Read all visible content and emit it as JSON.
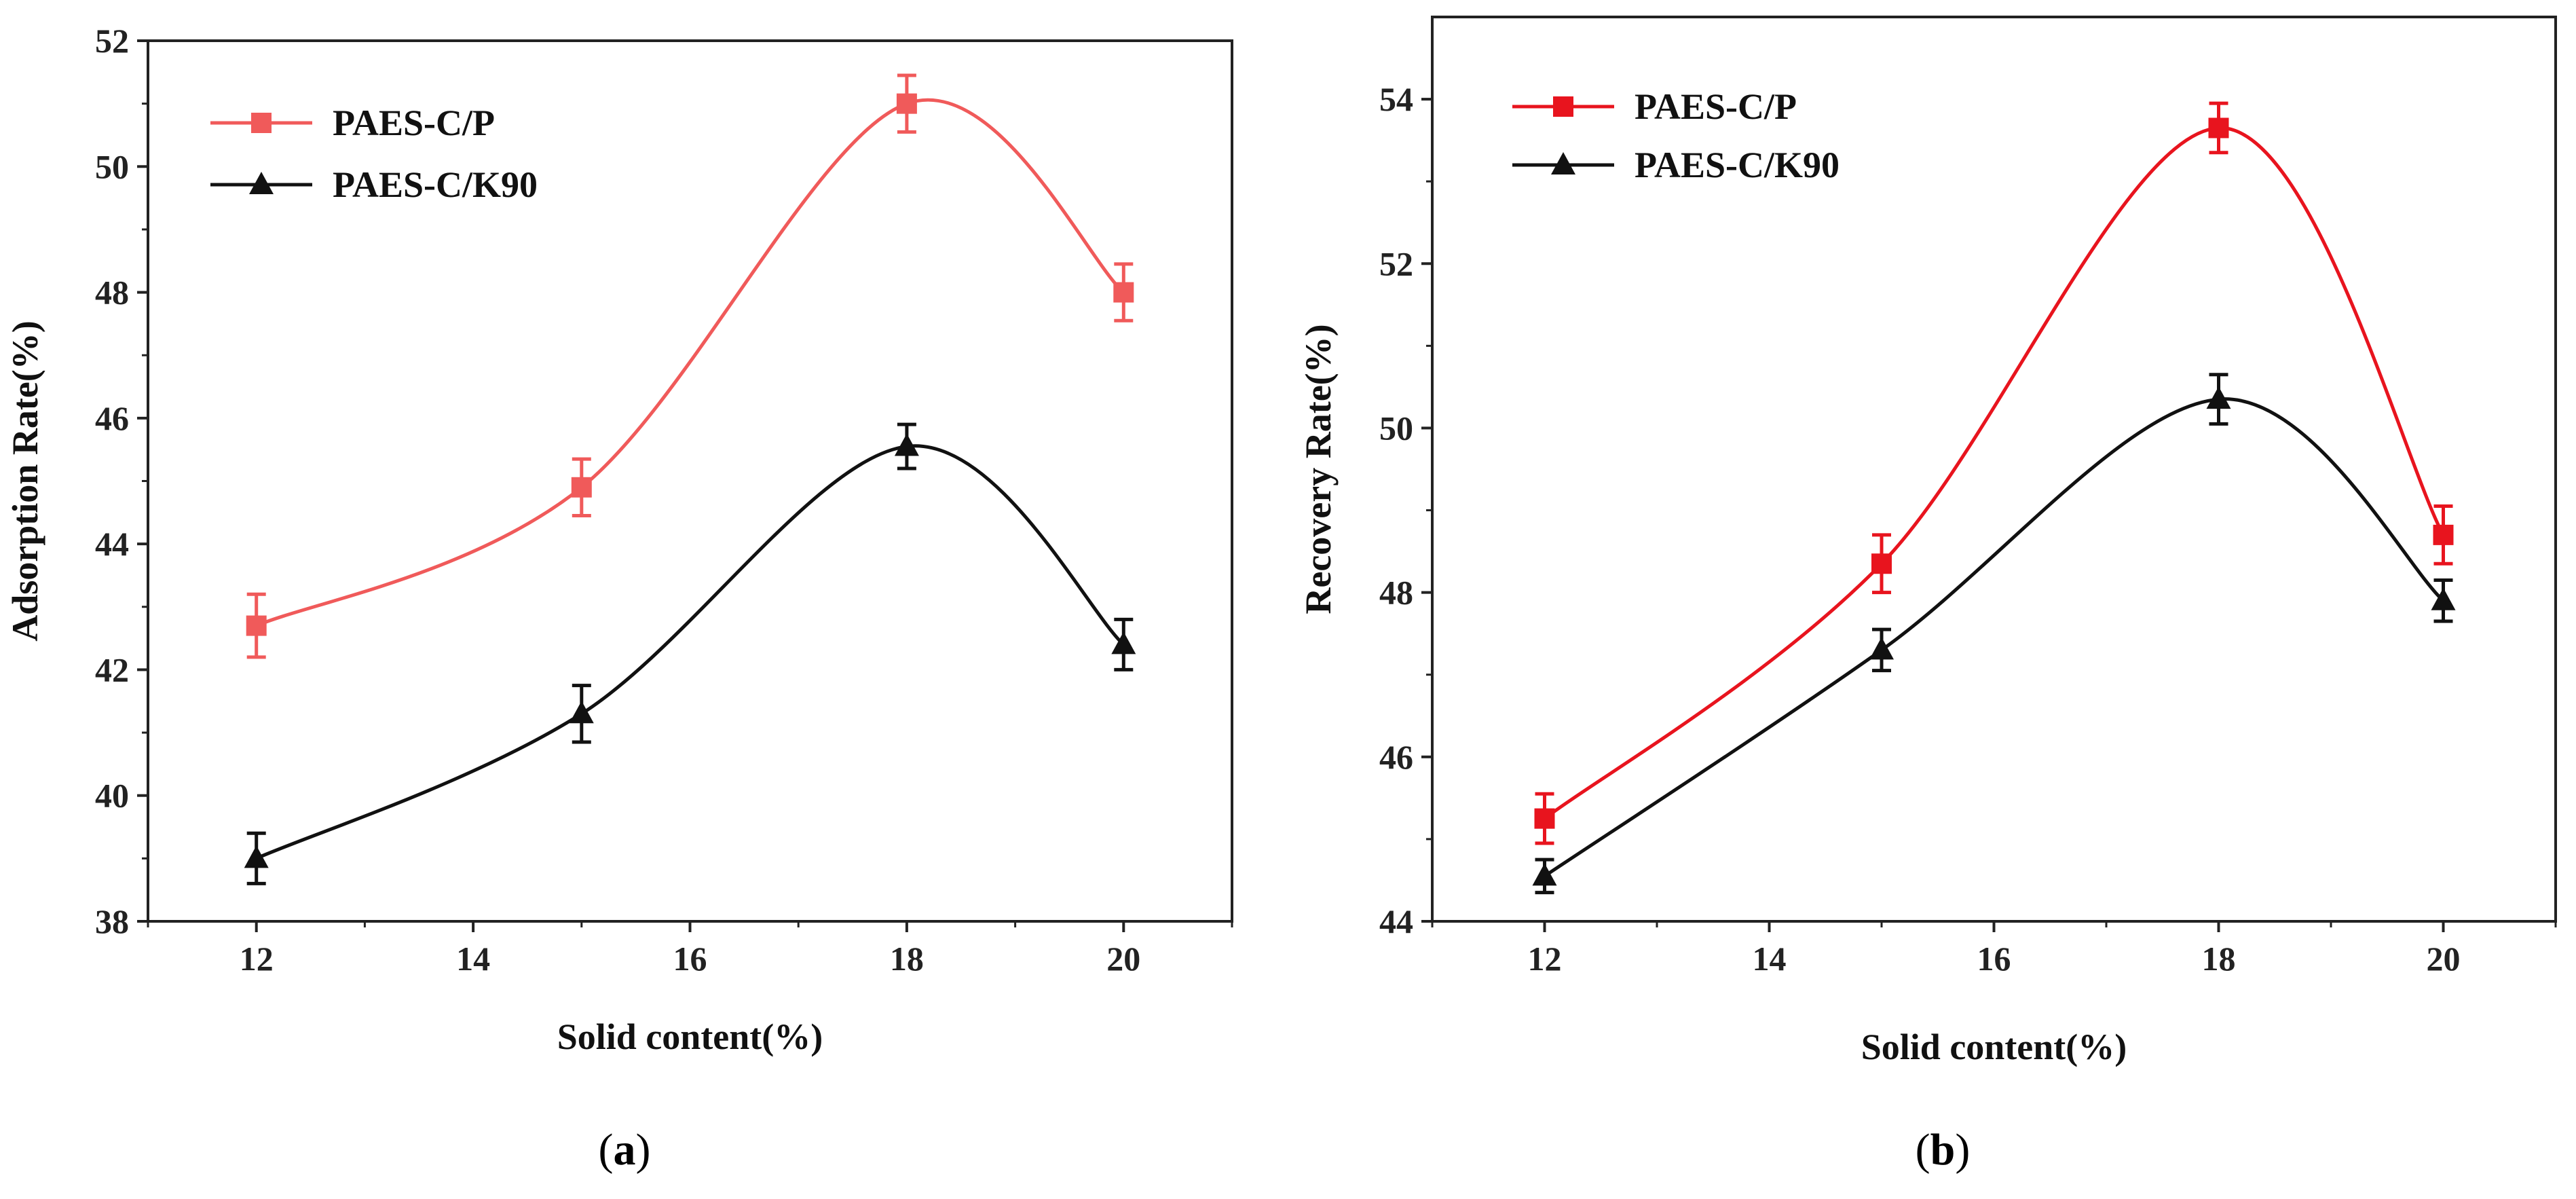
{
  "chart_data": [
    {
      "type": "line",
      "panel_label": "a",
      "panel_prefix": "(",
      "panel_suffix": ")",
      "xlabel": "Solid content(%)",
      "ylabel": "Adsorption Rate(%)",
      "xlim": [
        11,
        21
      ],
      "ylim": [
        38,
        52
      ],
      "xticks": [
        "12",
        "14",
        "16",
        "18",
        "20"
      ],
      "yticks": [
        "38",
        "40",
        "42",
        "44",
        "46",
        "48",
        "50",
        "52"
      ],
      "legend_position": "top-left",
      "series": [
        {
          "name": "PAES-C/P",
          "color": "#f05a5a",
          "marker": "square",
          "x": [
            12,
            15,
            18,
            20
          ],
          "values": [
            42.7,
            44.9,
            51.0,
            48.0
          ],
          "errors": [
            0.5,
            0.45,
            0.45,
            0.45
          ]
        },
        {
          "name": "PAES-C/K90",
          "color": "#111111",
          "marker": "triangle",
          "x": [
            12,
            15,
            18,
            20
          ],
          "values": [
            39.0,
            41.3,
            45.55,
            42.4
          ],
          "errors": [
            0.4,
            0.45,
            0.35,
            0.4
          ]
        }
      ]
    },
    {
      "type": "line",
      "panel_label": "b",
      "panel_prefix": "(",
      "panel_suffix": ")",
      "xlabel": "Solid content(%)",
      "ylabel": "Recovery Rate(%)",
      "xlim": [
        11,
        21
      ],
      "ylim": [
        44,
        55
      ],
      "xticks": [
        "12",
        "14",
        "16",
        "18",
        "20"
      ],
      "yticks": [
        "44",
        "46",
        "48",
        "50",
        "52",
        "54"
      ],
      "legend_position": "top-left",
      "series": [
        {
          "name": "PAES-C/P",
          "color": "#e8141e",
          "marker": "square",
          "x": [
            12,
            15,
            18,
            20
          ],
          "values": [
            45.25,
            48.35,
            53.65,
            48.7
          ],
          "errors": [
            0.3,
            0.35,
            0.3,
            0.35
          ]
        },
        {
          "name": "PAES-C/K90",
          "color": "#111111",
          "marker": "triangle",
          "x": [
            12,
            15,
            18,
            20
          ],
          "values": [
            44.55,
            47.3,
            50.35,
            47.9
          ],
          "errors": [
            0.2,
            0.25,
            0.3,
            0.25
          ]
        }
      ]
    }
  ]
}
